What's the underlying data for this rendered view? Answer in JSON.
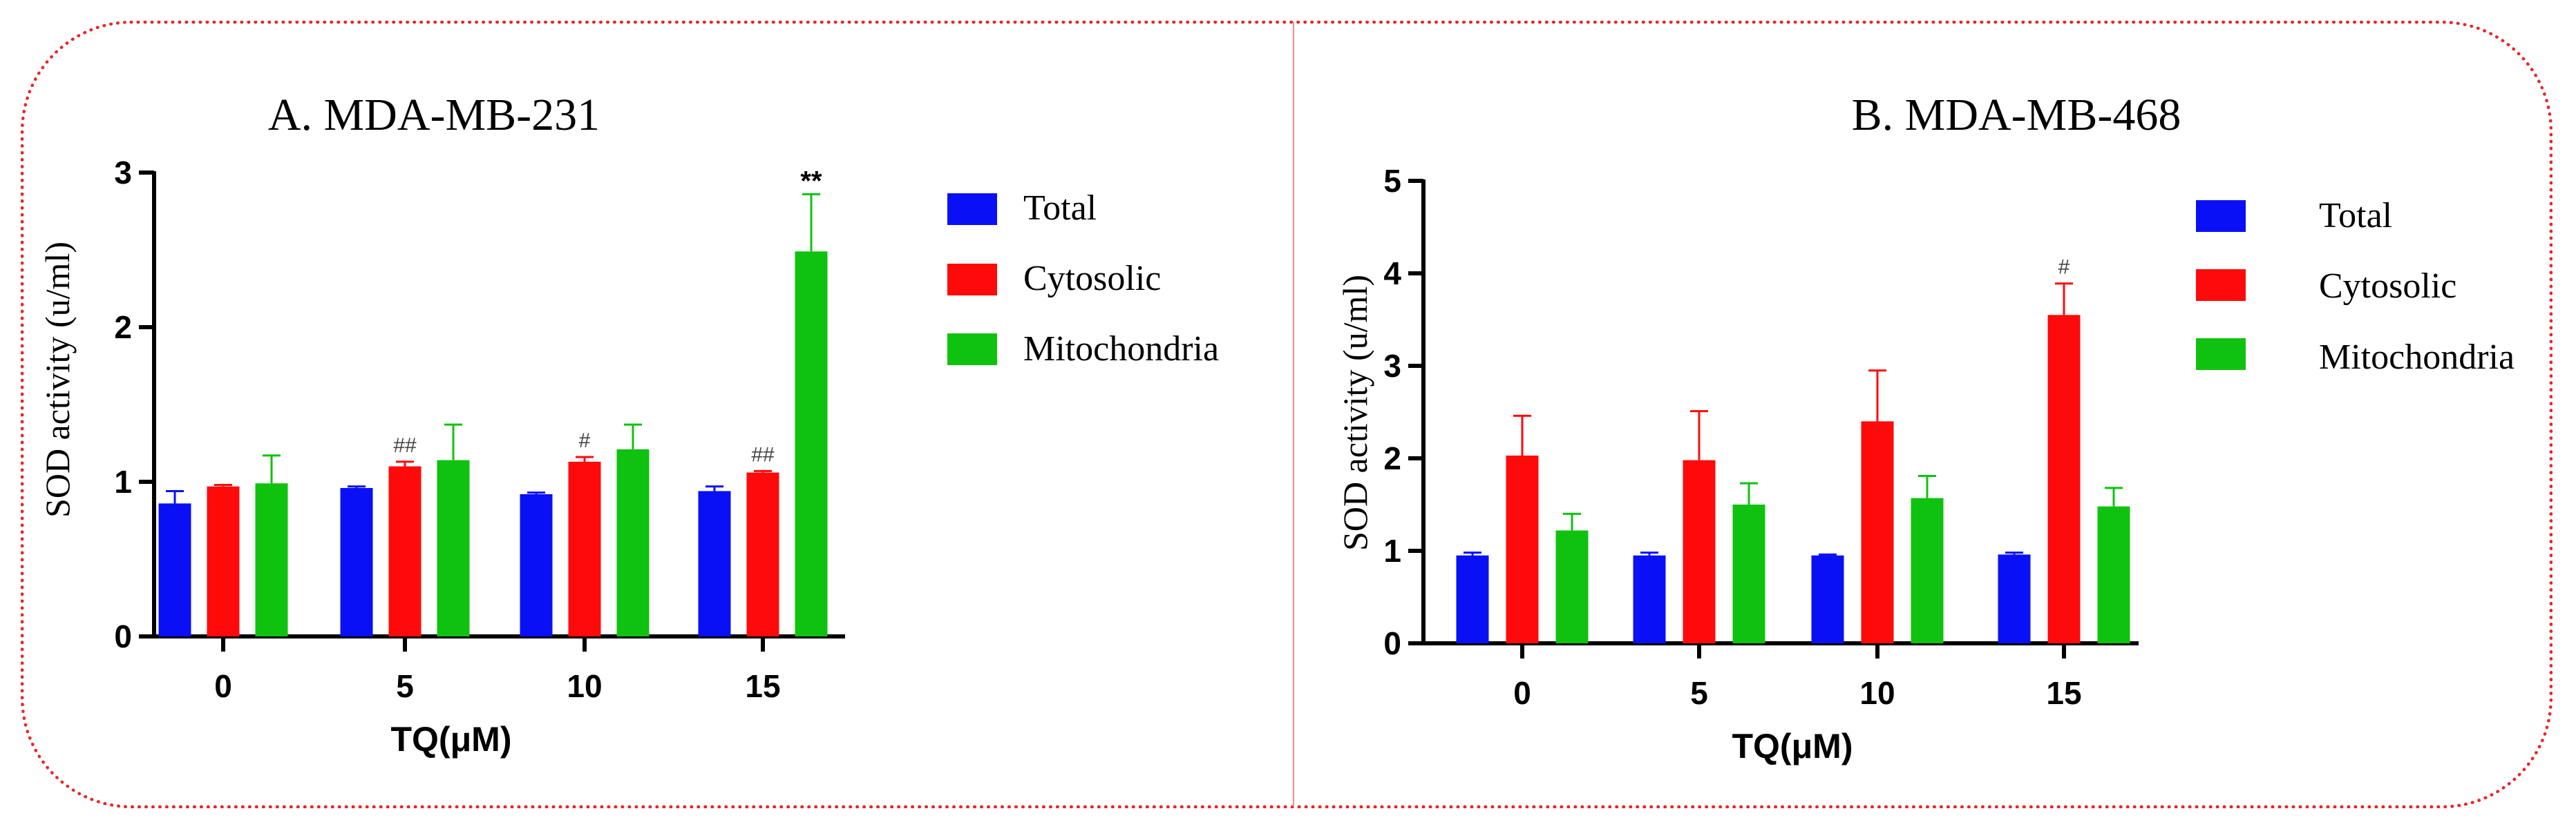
{
  "colors": {
    "total": "#0a10f5",
    "cytosolic": "#ff0a0a",
    "mitochondria": "#0fc20f",
    "frame": "#e8252a"
  },
  "chart_data": [
    {
      "type": "bar",
      "title": "A. MDA-MB-231",
      "xlabel": "TQ(μM)",
      "ylabel": "SOD activity (u/ml)",
      "categories": [
        "0",
        "5",
        "10",
        "15"
      ],
      "ylim": [
        0,
        3
      ],
      "yticks": [
        "0",
        "1",
        "2",
        "3"
      ],
      "series": [
        {
          "name": "Total",
          "color": "#0a10f5",
          "values": [
            0.86,
            0.96,
            0.92,
            0.94
          ],
          "errors": [
            0.08,
            0.01,
            0.01,
            0.03
          ],
          "sig": [
            "",
            "",
            "",
            ""
          ]
        },
        {
          "name": "Cytosolic",
          "color": "#ff0a0a",
          "values": [
            0.97,
            1.1,
            1.13,
            1.06
          ],
          "errors": [
            0.01,
            0.03,
            0.03,
            0.01
          ],
          "sig": [
            "",
            "##",
            "#",
            "##"
          ]
        },
        {
          "name": "Mitochondria",
          "color": "#0fc20f",
          "values": [
            0.99,
            1.14,
            1.21,
            2.49
          ],
          "errors": [
            0.18,
            0.23,
            0.16,
            0.37
          ],
          "sig": [
            "",
            "",
            "",
            "**"
          ]
        }
      ]
    },
    {
      "type": "bar",
      "title": "B. MDA-MB-468",
      "xlabel": "TQ(μM)",
      "ylabel": "SOD activity (u/ml)",
      "categories": [
        "0",
        "5",
        "10",
        "15"
      ],
      "ylim": [
        0,
        5
      ],
      "yticks": [
        "0",
        "1",
        "2",
        "3",
        "4",
        "5"
      ],
      "series": [
        {
          "name": "Total",
          "color": "#0a10f5",
          "values": [
            0.95,
            0.95,
            0.95,
            0.96
          ],
          "errors": [
            0.03,
            0.03,
            0.01,
            0.02
          ],
          "sig": [
            "",
            "",
            "",
            ""
          ]
        },
        {
          "name": "Cytosolic",
          "color": "#ff0a0a",
          "values": [
            2.03,
            1.98,
            2.4,
            3.55
          ],
          "errors": [
            0.43,
            0.53,
            0.55,
            0.34
          ],
          "sig": [
            "",
            "",
            "",
            "#"
          ]
        },
        {
          "name": "Mitochondria",
          "color": "#0fc20f",
          "values": [
            1.22,
            1.5,
            1.57,
            1.48
          ],
          "errors": [
            0.18,
            0.23,
            0.24,
            0.2
          ],
          "sig": [
            "",
            "",
            "",
            ""
          ]
        }
      ]
    }
  ]
}
